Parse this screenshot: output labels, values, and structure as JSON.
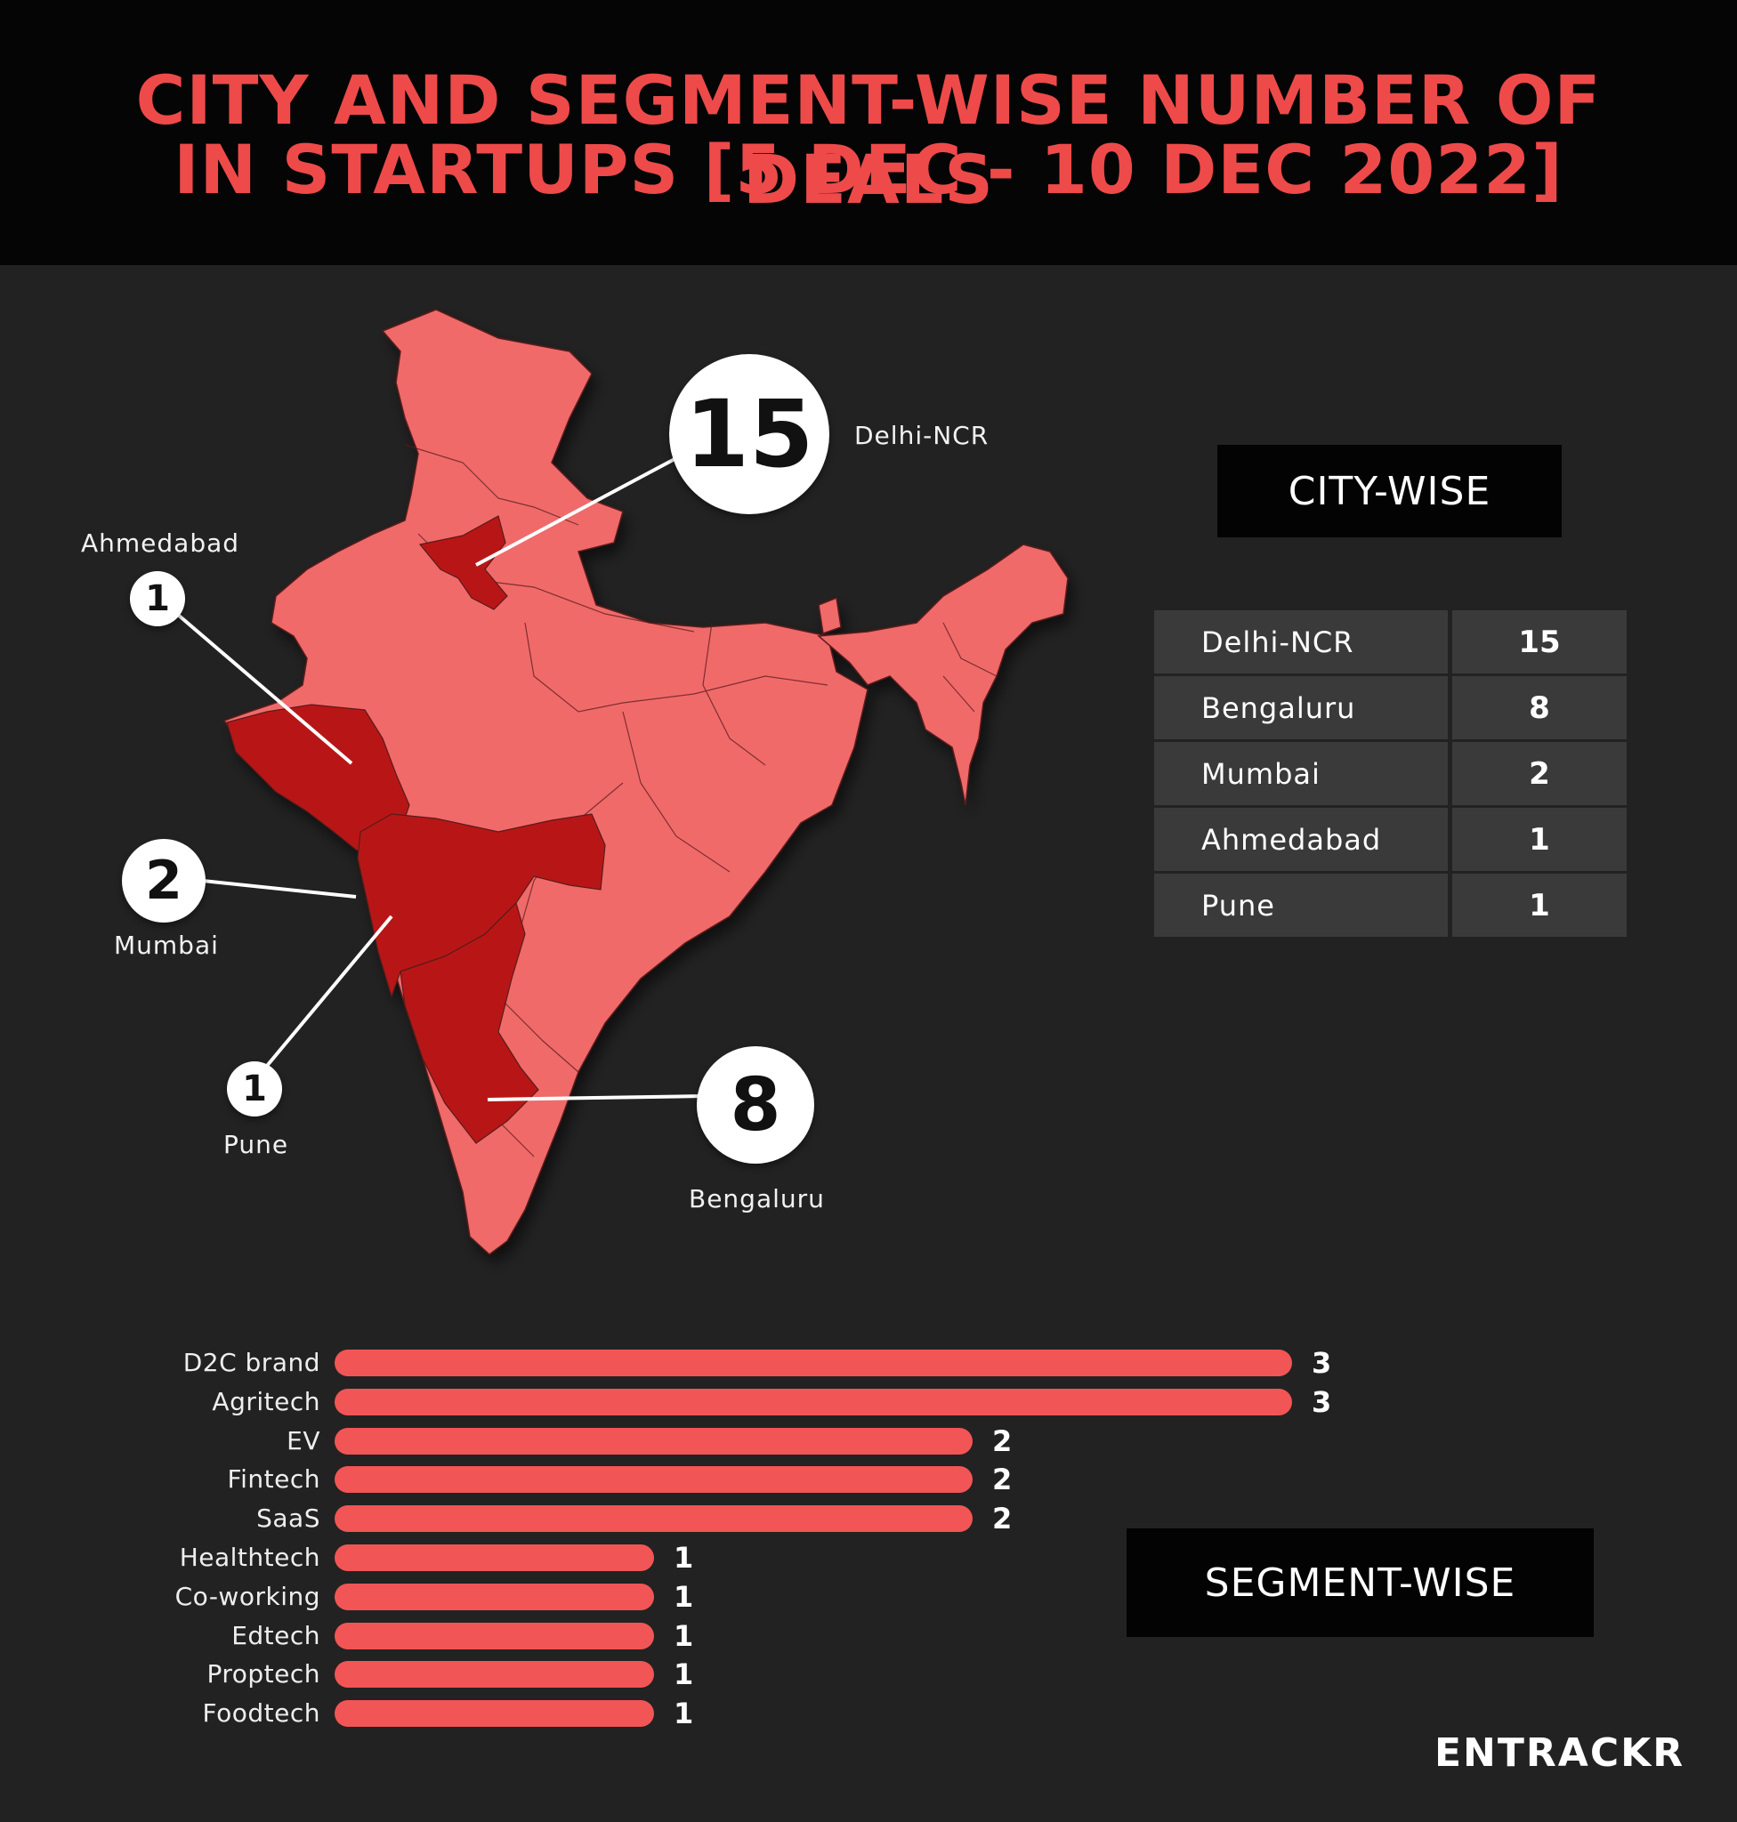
{
  "title": {
    "line1": "CITY AND SEGMENT-WISE NUMBER OF DEALS",
    "line2": "IN STARTUPS [5 DEC - 10 DEC 2022]"
  },
  "colors": {
    "accent": "#ee4a4a",
    "map_light": "#f06b6b",
    "map_dark": "#b81818",
    "bar": "#f25555",
    "background": "#222222"
  },
  "map_callouts": [
    {
      "city": "Delhi-NCR",
      "value": "15"
    },
    {
      "city": "Ahmedabad",
      "value": "1"
    },
    {
      "city": "Mumbai",
      "value": "2"
    },
    {
      "city": "Pune",
      "value": "1"
    },
    {
      "city": "Bengaluru",
      "value": "8"
    }
  ],
  "city_wise": {
    "heading": "CITY-WISE",
    "rows": [
      {
        "city": "Delhi-NCR",
        "count": "15"
      },
      {
        "city": "Bengaluru",
        "count": "8"
      },
      {
        "city": "Mumbai",
        "count": "2"
      },
      {
        "city": "Ahmedabad",
        "count": "1"
      },
      {
        "city": "Pune",
        "count": "1"
      }
    ]
  },
  "segment_wise": {
    "heading": "SEGMENT-WISE"
  },
  "chart_data": [
    {
      "type": "table",
      "title": "CITY-WISE",
      "categories": [
        "Delhi-NCR",
        "Bengaluru",
        "Mumbai",
        "Ahmedabad",
        "Pune"
      ],
      "values": [
        15,
        8,
        2,
        1,
        1
      ]
    },
    {
      "type": "bar",
      "orientation": "horizontal",
      "title": "SEGMENT-WISE",
      "categories": [
        "D2C brand",
        "Agritech",
        "EV",
        "Fintech",
        "SaaS",
        "Healthtech",
        "Co-working",
        "Edtech",
        "Proptech",
        "Foodtech"
      ],
      "values": [
        3,
        3,
        2,
        2,
        2,
        1,
        1,
        1,
        1,
        1
      ],
      "xlim": [
        0,
        3
      ],
      "grid": false
    }
  ],
  "logo": "ENTRACKR"
}
